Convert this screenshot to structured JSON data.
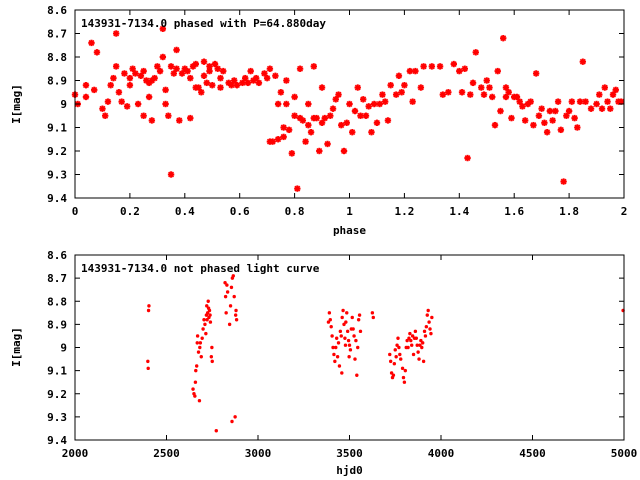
{
  "chart_data": [
    {
      "type": "scatter",
      "title": "143931-7134.0 phased with P=64.880day",
      "xlabel": "phase",
      "ylabel": "I[mag]",
      "xlim": [
        0,
        2
      ],
      "ylim": [
        9.4,
        8.6
      ],
      "y_inverted": true,
      "xticks": [
        "0",
        "0.2",
        "0.4",
        "0.6",
        "0.8",
        "1",
        "1.2",
        "1.4",
        "1.6",
        "1.8",
        "2"
      ],
      "yticks": [
        "8.6",
        "8.7",
        "8.8",
        "8.9",
        "9",
        "9.1",
        "9.2",
        "9.3",
        "9.4"
      ],
      "grid": false,
      "legend": "none",
      "marker_color": "#ff0000",
      "points": [
        [
          0.0,
          8.96
        ],
        [
          0.01,
          9.0
        ],
        [
          0.04,
          8.92
        ],
        [
          0.04,
          8.97
        ],
        [
          0.06,
          8.74
        ],
        [
          0.07,
          8.94
        ],
        [
          0.08,
          8.78
        ],
        [
          0.1,
          9.02
        ],
        [
          0.11,
          9.05
        ],
        [
          0.12,
          8.99
        ],
        [
          0.13,
          8.92
        ],
        [
          0.14,
          8.89
        ],
        [
          0.15,
          8.7
        ],
        [
          0.15,
          8.84
        ],
        [
          0.16,
          8.95
        ],
        [
          0.17,
          8.99
        ],
        [
          0.18,
          8.87
        ],
        [
          0.19,
          9.01
        ],
        [
          0.2,
          8.89
        ],
        [
          0.2,
          8.92
        ],
        [
          0.21,
          8.85
        ],
        [
          0.22,
          8.87
        ],
        [
          0.23,
          9.0
        ],
        [
          0.24,
          8.88
        ],
        [
          0.25,
          9.05
        ],
        [
          0.25,
          8.86
        ],
        [
          0.26,
          8.9
        ],
        [
          0.27,
          8.97
        ],
        [
          0.27,
          8.91
        ],
        [
          0.28,
          8.9
        ],
        [
          0.28,
          9.07
        ],
        [
          0.29,
          8.89
        ],
        [
          0.3,
          8.84
        ],
        [
          0.31,
          8.86
        ],
        [
          0.32,
          8.68
        ],
        [
          0.32,
          8.8
        ],
        [
          0.33,
          8.94
        ],
        [
          0.33,
          9.0
        ],
        [
          0.34,
          9.05
        ],
        [
          0.35,
          9.3
        ],
        [
          0.35,
          8.84
        ],
        [
          0.36,
          8.87
        ],
        [
          0.37,
          8.85
        ],
        [
          0.37,
          8.77
        ],
        [
          0.38,
          9.07
        ],
        [
          0.39,
          8.87
        ],
        [
          0.4,
          8.85
        ],
        [
          0.41,
          8.86
        ],
        [
          0.42,
          9.06
        ],
        [
          0.42,
          8.89
        ],
        [
          0.43,
          8.84
        ],
        [
          0.44,
          8.93
        ],
        [
          0.44,
          8.83
        ],
        [
          0.45,
          8.93
        ],
        [
          0.46,
          8.95
        ],
        [
          0.47,
          8.88
        ],
        [
          0.47,
          8.82
        ],
        [
          0.48,
          8.91
        ],
        [
          0.49,
          8.84
        ],
        [
          0.49,
          8.86
        ],
        [
          0.5,
          8.92
        ],
        [
          0.51,
          8.83
        ],
        [
          0.52,
          8.85
        ],
        [
          0.53,
          8.89
        ],
        [
          0.53,
          8.93
        ],
        [
          0.54,
          8.86
        ],
        [
          0.56,
          8.91
        ],
        [
          0.57,
          8.92
        ],
        [
          0.58,
          8.9
        ],
        [
          0.59,
          8.92
        ],
        [
          0.61,
          8.91
        ],
        [
          0.62,
          8.89
        ],
        [
          0.63,
          8.91
        ],
        [
          0.64,
          8.86
        ],
        [
          0.65,
          8.9
        ],
        [
          0.66,
          8.89
        ],
        [
          0.67,
          8.91
        ],
        [
          0.69,
          8.87
        ],
        [
          0.7,
          8.89
        ],
        [
          0.71,
          8.85
        ],
        [
          0.71,
          9.16
        ],
        [
          0.72,
          9.16
        ],
        [
          0.73,
          8.88
        ],
        [
          0.74,
          9.15
        ],
        [
          0.74,
          9.0
        ],
        [
          0.75,
          8.95
        ],
        [
          0.76,
          9.1
        ],
        [
          0.76,
          9.14
        ],
        [
          0.77,
          9.0
        ],
        [
          0.77,
          8.9
        ],
        [
          0.78,
          9.11
        ],
        [
          0.79,
          9.21
        ],
        [
          0.8,
          8.97
        ],
        [
          0.8,
          9.05
        ],
        [
          0.81,
          9.36
        ],
        [
          0.82,
          9.06
        ],
        [
          0.82,
          8.85
        ],
        [
          0.83,
          9.07
        ],
        [
          0.84,
          9.16
        ],
        [
          0.85,
          9.0
        ],
        [
          0.85,
          9.09
        ],
        [
          0.86,
          9.12
        ],
        [
          0.87,
          8.84
        ],
        [
          0.87,
          9.06
        ],
        [
          0.88,
          9.06
        ],
        [
          0.89,
          9.2
        ],
        [
          0.9,
          9.08
        ],
        [
          0.9,
          8.93
        ],
        [
          0.91,
          9.06
        ],
        [
          0.92,
          9.17
        ],
        [
          0.93,
          9.05
        ],
        [
          0.94,
          9.02
        ],
        [
          0.95,
          8.98
        ],
        [
          0.96,
          8.96
        ],
        [
          0.97,
          9.09
        ],
        [
          0.98,
          9.2
        ],
        [
          0.99,
          9.08
        ],
        [
          1.0,
          9.0
        ],
        [
          1.01,
          9.12
        ],
        [
          1.02,
          9.03
        ],
        [
          1.03,
          8.93
        ],
        [
          1.04,
          9.05
        ],
        [
          1.05,
          8.98
        ],
        [
          1.06,
          9.05
        ],
        [
          1.07,
          9.01
        ],
        [
          1.08,
          9.12
        ],
        [
          1.09,
          9.0
        ],
        [
          1.1,
          9.08
        ],
        [
          1.11,
          9.0
        ],
        [
          1.12,
          8.96
        ],
        [
          1.13,
          8.99
        ],
        [
          1.14,
          9.07
        ],
        [
          1.15,
          8.92
        ],
        [
          1.17,
          8.96
        ],
        [
          1.18,
          8.88
        ],
        [
          1.19,
          8.95
        ],
        [
          1.2,
          8.92
        ],
        [
          1.22,
          8.86
        ],
        [
          1.23,
          8.99
        ],
        [
          1.24,
          8.86
        ],
        [
          1.26,
          8.93
        ],
        [
          1.27,
          8.84
        ],
        [
          1.3,
          8.84
        ],
        [
          1.33,
          8.84
        ],
        [
          1.34,
          8.96
        ],
        [
          1.36,
          8.95
        ],
        [
          1.38,
          8.83
        ],
        [
          1.4,
          8.86
        ],
        [
          1.41,
          8.95
        ],
        [
          1.42,
          8.85
        ],
        [
          1.43,
          9.23
        ],
        [
          1.44,
          8.96
        ],
        [
          1.45,
          8.91
        ],
        [
          1.46,
          8.78
        ],
        [
          1.48,
          8.93
        ],
        [
          1.49,
          8.96
        ],
        [
          1.5,
          8.9
        ],
        [
          1.51,
          8.93
        ],
        [
          1.52,
          8.97
        ],
        [
          1.53,
          9.09
        ],
        [
          1.54,
          8.86
        ],
        [
          1.55,
          9.03
        ],
        [
          1.56,
          8.72
        ],
        [
          1.57,
          8.97
        ],
        [
          1.57,
          8.93
        ],
        [
          1.58,
          8.95
        ],
        [
          1.59,
          9.06
        ],
        [
          1.6,
          8.97
        ],
        [
          1.61,
          8.97
        ],
        [
          1.62,
          8.99
        ],
        [
          1.63,
          9.01
        ],
        [
          1.64,
          9.07
        ],
        [
          1.65,
          9.0
        ],
        [
          1.66,
          8.99
        ],
        [
          1.67,
          9.09
        ],
        [
          1.68,
          8.87
        ],
        [
          1.69,
          9.05
        ],
        [
          1.7,
          9.02
        ],
        [
          1.71,
          9.08
        ],
        [
          1.72,
          9.12
        ],
        [
          1.73,
          9.03
        ],
        [
          1.74,
          9.07
        ],
        [
          1.75,
          9.03
        ],
        [
          1.76,
          8.99
        ],
        [
          1.77,
          9.11
        ],
        [
          1.78,
          9.33
        ],
        [
          1.79,
          9.05
        ],
        [
          1.8,
          9.03
        ],
        [
          1.81,
          8.99
        ],
        [
          1.82,
          9.06
        ],
        [
          1.83,
          9.1
        ],
        [
          1.84,
          8.99
        ],
        [
          1.85,
          8.82
        ],
        [
          1.86,
          8.99
        ],
        [
          1.88,
          9.02
        ],
        [
          1.9,
          9.0
        ],
        [
          1.91,
          8.96
        ],
        [
          1.92,
          9.02
        ],
        [
          1.93,
          8.93
        ],
        [
          1.94,
          8.99
        ],
        [
          1.95,
          9.02
        ],
        [
          1.96,
          8.96
        ],
        [
          1.97,
          8.94
        ],
        [
          1.98,
          8.99
        ],
        [
          1.99,
          8.99
        ]
      ]
    },
    {
      "type": "scatter",
      "title": "143931-7134.0 not phased light curve",
      "xlabel": "hjd0",
      "ylabel": "I[mag]",
      "xlim": [
        2000,
        5000
      ],
      "ylim": [
        9.4,
        8.6
      ],
      "y_inverted": true,
      "xticks": [
        "2000",
        "2500",
        "3000",
        "3500",
        "4000",
        "4500",
        "5000"
      ],
      "yticks": [
        "8.6",
        "8.7",
        "8.8",
        "8.9",
        "9",
        "9.1",
        "9.2",
        "9.3",
        "9.4"
      ],
      "grid": false,
      "legend": "none",
      "marker_color": "#ff0000",
      "points": [
        [
          2398,
          9.06
        ],
        [
          2400,
          9.09
        ],
        [
          2402,
          8.84
        ],
        [
          2404,
          8.82
        ],
        [
          2645,
          9.18
        ],
        [
          2650,
          9.2
        ],
        [
          2655,
          9.21
        ],
        [
          2658,
          9.15
        ],
        [
          2660,
          9.1
        ],
        [
          2665,
          9.08
        ],
        [
          2668,
          8.98
        ],
        [
          2670,
          8.95
        ],
        [
          2675,
          9.02
        ],
        [
          2680,
          9.23
        ],
        [
          2682,
          9.0
        ],
        [
          2685,
          8.98
        ],
        [
          2690,
          9.04
        ],
        [
          2695,
          8.96
        ],
        [
          2700,
          8.92
        ],
        [
          2705,
          8.88
        ],
        [
          2710,
          8.9
        ],
        [
          2715,
          8.94
        ],
        [
          2718,
          8.86
        ],
        [
          2720,
          8.82
        ],
        [
          2722,
          8.88
        ],
        [
          2725,
          8.85
        ],
        [
          2728,
          8.8
        ],
        [
          2730,
          8.83
        ],
        [
          2732,
          8.87
        ],
        [
          2735,
          8.84
        ],
        [
          2738,
          8.86
        ],
        [
          2740,
          8.89
        ],
        [
          2745,
          9.04
        ],
        [
          2748,
          9.0
        ],
        [
          2750,
          9.06
        ],
        [
          2772,
          9.36
        ],
        [
          2820,
          8.72
        ],
        [
          2823,
          8.78
        ],
        [
          2826,
          8.85
        ],
        [
          2830,
          8.73
        ],
        [
          2834,
          8.76
        ],
        [
          2845,
          8.9
        ],
        [
          2850,
          8.82
        ],
        [
          2855,
          8.74
        ],
        [
          2858,
          9.32
        ],
        [
          2860,
          8.7
        ],
        [
          2865,
          8.69
        ],
        [
          2870,
          8.78
        ],
        [
          2875,
          9.3
        ],
        [
          2878,
          8.86
        ],
        [
          2880,
          8.84
        ],
        [
          2883,
          8.88
        ],
        [
          3385,
          8.89
        ],
        [
          3390,
          8.85
        ],
        [
          3395,
          8.88
        ],
        [
          3400,
          8.91
        ],
        [
          3405,
          8.95
        ],
        [
          3410,
          9.0
        ],
        [
          3415,
          9.03
        ],
        [
          3420,
          9.06
        ],
        [
          3425,
          9.0
        ],
        [
          3430,
          8.96
        ],
        [
          3435,
          9.04
        ],
        [
          3440,
          8.98
        ],
        [
          3445,
          9.08
        ],
        [
          3450,
          8.93
        ],
        [
          3455,
          8.95
        ],
        [
          3458,
          9.11
        ],
        [
          3460,
          8.87
        ],
        [
          3465,
          8.84
        ],
        [
          3470,
          8.9
        ],
        [
          3475,
          8.96
        ],
        [
          3478,
          8.99
        ],
        [
          3480,
          8.89
        ],
        [
          3485,
          8.85
        ],
        [
          3490,
          8.93
        ],
        [
          3495,
          8.97
        ],
        [
          3498,
          9.04
        ],
        [
          3500,
          8.99
        ],
        [
          3505,
          9.01
        ],
        [
          3510,
          8.92
        ],
        [
          3515,
          8.87
        ],
        [
          3520,
          8.92
        ],
        [
          3525,
          8.95
        ],
        [
          3530,
          9.05
        ],
        [
          3535,
          8.97
        ],
        [
          3540,
          9.12
        ],
        [
          3545,
          9.0
        ],
        [
          3550,
          8.88
        ],
        [
          3555,
          8.86
        ],
        [
          3560,
          8.93
        ],
        [
          3625,
          8.85
        ],
        [
          3630,
          8.87
        ],
        [
          3720,
          9.03
        ],
        [
          3725,
          9.06
        ],
        [
          3730,
          9.11
        ],
        [
          3735,
          9.13
        ],
        [
          3740,
          9.12
        ],
        [
          3745,
          9.07
        ],
        [
          3750,
          9.01
        ],
        [
          3755,
          9.04
        ],
        [
          3760,
          8.99
        ],
        [
          3765,
          8.96
        ],
        [
          3770,
          9.0
        ],
        [
          3775,
          9.03
        ],
        [
          3780,
          9.05
        ],
        [
          3790,
          9.09
        ],
        [
          3795,
          9.13
        ],
        [
          3800,
          9.15
        ],
        [
          3805,
          9.1
        ],
        [
          3810,
          9.0
        ],
        [
          3815,
          8.97
        ],
        [
          3820,
          9.0
        ],
        [
          3825,
          8.96
        ],
        [
          3830,
          8.94
        ],
        [
          3835,
          8.97
        ],
        [
          3840,
          8.99
        ],
        [
          3845,
          8.95
        ],
        [
          3850,
          9.03
        ],
        [
          3855,
          8.96
        ],
        [
          3860,
          8.93
        ],
        [
          3865,
          8.96
        ],
        [
          3870,
          8.99
        ],
        [
          3875,
          9.02
        ],
        [
          3880,
          9.05
        ],
        [
          3885,
          8.99
        ],
        [
          3890,
          8.97
        ],
        [
          3895,
          9.0
        ],
        [
          3900,
          8.98
        ],
        [
          3905,
          9.06
        ],
        [
          3910,
          8.93
        ],
        [
          3915,
          8.95
        ],
        [
          3920,
          8.91
        ],
        [
          3925,
          8.86
        ],
        [
          3930,
          8.84
        ],
        [
          3935,
          8.89
        ],
        [
          3940,
          8.92
        ],
        [
          3945,
          8.94
        ],
        [
          3950,
          8.87
        ],
        [
          4995,
          8.84
        ]
      ]
    }
  ]
}
